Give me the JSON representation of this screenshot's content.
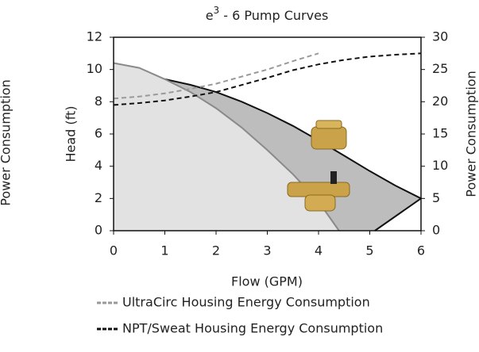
{
  "chart_data": {
    "type": "line",
    "title": {
      "base": "e",
      "superscript": "3",
      "text": " - 6 Pump Curves"
    },
    "x_label": "Flow (GPM)",
    "y_label": "Head (ft)",
    "y2_label": "Power Consumption",
    "left_label": "Power Consumption",
    "xlim": [
      0,
      6
    ],
    "xticks": [
      0,
      1,
      2,
      3,
      4,
      5,
      6
    ],
    "ylim": [
      0,
      12
    ],
    "yticks": [
      0,
      2,
      4,
      6,
      8,
      10,
      12
    ],
    "y2lim": [
      0,
      30
    ],
    "y2ticks": [
      0,
      5,
      10,
      15,
      20,
      25,
      30
    ],
    "areas": [
      {
        "color": "#111111",
        "fill": "#bdbdbd",
        "x": [
          0.8,
          1,
          1.5,
          2,
          2.5,
          3,
          3.5,
          4,
          4.5,
          5,
          5.5,
          6,
          5.1
        ],
        "values": [
          9.5,
          9.4,
          9.05,
          8.6,
          8.0,
          7.3,
          6.5,
          5.6,
          4.65,
          3.7,
          2.8,
          2,
          0
        ]
      },
      {
        "color": "#8a8a8a",
        "fill": "#e2e2e2",
        "x": [
          0,
          0.5,
          1,
          1.5,
          2,
          2.5,
          3,
          3.5,
          4,
          4.4
        ],
        "values": [
          10.4,
          10.1,
          9.4,
          8.6,
          7.6,
          6.4,
          5.0,
          3.5,
          1.8,
          0
        ]
      }
    ],
    "series": [
      {
        "name": "UltraCirc Housing Energy Consumption",
        "color": "#999999",
        "axis": "y2",
        "x": [
          0,
          0.5,
          1,
          1.5,
          2,
          2.5,
          3,
          3.5,
          4
        ],
        "values": [
          20.5,
          20.8,
          21.3,
          22.0,
          22.8,
          23.9,
          25.0,
          26.3,
          27.5
        ]
      },
      {
        "name": "NPT/Sweat Housing Energy Consumption",
        "color": "#111111",
        "axis": "y2",
        "x": [
          0,
          0.5,
          1,
          1.5,
          2,
          2.5,
          3,
          3.5,
          4,
          4.5,
          5,
          5.5,
          6
        ],
        "values": [
          19.5,
          19.8,
          20.2,
          20.8,
          21.5,
          22.6,
          23.7,
          24.9,
          25.8,
          26.5,
          27.0,
          27.3,
          27.5
        ]
      }
    ]
  }
}
